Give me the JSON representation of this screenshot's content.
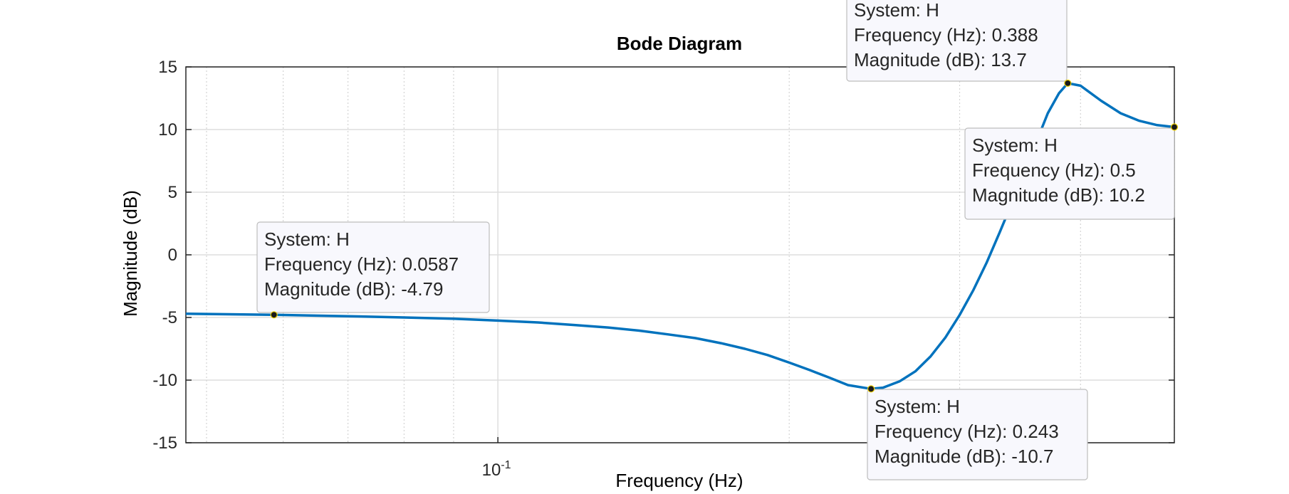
{
  "chart_data": {
    "type": "line",
    "title": "Bode Diagram",
    "xlabel": "Frequency  (Hz)",
    "ylabel": "Magnitude (dB)",
    "xscale": "log",
    "xlim": [
      0.0476,
      0.5
    ],
    "ylim": [
      -15,
      15
    ],
    "yticks": [
      15,
      10,
      5,
      0,
      -5,
      -10,
      -15
    ],
    "xticks": [
      {
        "value": 0.1,
        "base": "10",
        "exp": "-1"
      }
    ],
    "grid": true,
    "series_color": "#0072BD",
    "series": [
      {
        "name": "H",
        "x": [
          0.0476,
          0.0587,
          0.07,
          0.08,
          0.09,
          0.1,
          0.11,
          0.12,
          0.13,
          0.14,
          0.15,
          0.16,
          0.17,
          0.18,
          0.19,
          0.2,
          0.21,
          0.22,
          0.23,
          0.243,
          0.25,
          0.26,
          0.27,
          0.28,
          0.29,
          0.3,
          0.31,
          0.32,
          0.33,
          0.34,
          0.35,
          0.36,
          0.37,
          0.38,
          0.388,
          0.4,
          0.42,
          0.44,
          0.46,
          0.48,
          0.5
        ],
        "y": [
          -4.7,
          -4.79,
          -4.9,
          -5.0,
          -5.1,
          -5.25,
          -5.4,
          -5.6,
          -5.8,
          -6.05,
          -6.35,
          -6.65,
          -7.05,
          -7.5,
          -8.0,
          -8.6,
          -9.2,
          -9.8,
          -10.4,
          -10.7,
          -10.6,
          -10.1,
          -9.3,
          -8.1,
          -6.6,
          -4.8,
          -2.8,
          -0.6,
          1.8,
          4.2,
          6.6,
          9.0,
          11.3,
          12.9,
          13.7,
          13.5,
          12.3,
          11.3,
          10.7,
          10.35,
          10.2
        ]
      }
    ],
    "datatips": [
      {
        "system": "System: H",
        "freq": "Frequency (Hz): 0.0587",
        "mag": "Magnitude (dB): -4.79",
        "x": 0.0587,
        "y": -4.79
      },
      {
        "system": "System: H",
        "freq": "Frequency (Hz): 0.243",
        "mag": "Magnitude (dB): -10.7",
        "x": 0.243,
        "y": -10.7
      },
      {
        "system": "System: H",
        "freq": "Frequency (Hz): 0.388",
        "mag": "Magnitude (dB): 13.7",
        "x": 0.388,
        "y": 13.7
      },
      {
        "system": "System: H",
        "freq": "Frequency (Hz): 0.5",
        "mag": "Magnitude (dB): 10.2",
        "x": 0.5,
        "y": 10.2
      }
    ]
  }
}
